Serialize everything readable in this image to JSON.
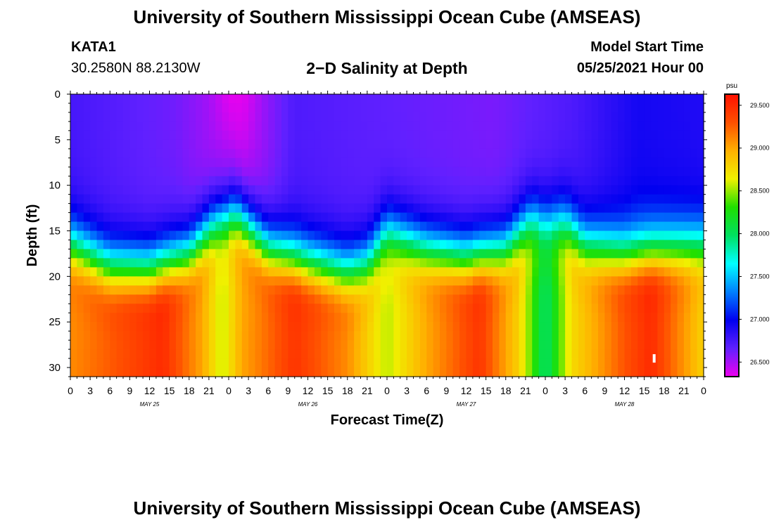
{
  "header": {
    "title": "University of Southern Mississippi Ocean Cube (AMSEAS)",
    "station_id": "KATA1",
    "station_coords": "30.2580N  88.2130W",
    "chart_title": "2−D Salinity at Depth",
    "model_start_label": "Model Start Time",
    "model_start_value": "05/25/2021 Hour 00"
  },
  "footer": {
    "title": "University of Southern Mississippi Ocean Cube (AMSEAS)"
  },
  "colors": {
    "background": "#ffffff",
    "axis": "#000000",
    "marker": "#ffffff"
  },
  "chart_data": {
    "type": "heatmap",
    "title": "2−D Salinity at Depth",
    "xlabel": "Forecast Time(Z)",
    "ylabel": "Depth (ft)",
    "x_range_hours": [
      0,
      96
    ],
    "y_range_ft": [
      0,
      31
    ],
    "x_tick_labels": [
      "0",
      "3",
      "6",
      "9",
      "12",
      "15",
      "18",
      "21",
      "0",
      "3",
      "6",
      "9",
      "12",
      "15",
      "18",
      "21",
      "0",
      "3",
      "6",
      "9",
      "12",
      "15",
      "18",
      "21",
      "0",
      "3",
      "6",
      "9",
      "12",
      "15",
      "18",
      "21",
      "0"
    ],
    "y_ticks": [
      0,
      5,
      10,
      15,
      20,
      25,
      30
    ],
    "day_labels": [
      {
        "label": "MAY 25",
        "hour": 12
      },
      {
        "label": "MAY 26",
        "hour": 36
      },
      {
        "label": "MAY 27",
        "hour": 60
      },
      {
        "label": "MAY 28",
        "hour": 84
      }
    ],
    "colorbar": {
      "unit": "psu",
      "range": [
        26.33,
        29.63
      ],
      "tick_values": [
        26.5,
        27.0,
        27.5,
        28.0,
        28.5,
        29.0,
        29.5
      ],
      "tick_labels": [
        "26.500",
        "27.000",
        "27.500",
        "28.000",
        "28.500",
        "29.000",
        "29.500"
      ],
      "stops": [
        "#ee00ee",
        "#6020ff",
        "#0000f0",
        "#0080ff",
        "#00ffff",
        "#00e060",
        "#20e000",
        "#f0f000",
        "#ffb000",
        "#ff5000",
        "#ff1000"
      ]
    },
    "halocline_depth_ft": [
      {
        "hour": 0,
        "depth": 14.0
      },
      {
        "hour": 6,
        "depth": 16.5
      },
      {
        "hour": 12,
        "depth": 16.8
      },
      {
        "hour": 18,
        "depth": 15.0
      },
      {
        "hour": 22,
        "depth": 11.5
      },
      {
        "hour": 25,
        "depth": 10.5
      },
      {
        "hour": 30,
        "depth": 14.5
      },
      {
        "hour": 36,
        "depth": 16.0
      },
      {
        "hour": 42,
        "depth": 17.0
      },
      {
        "hour": 45,
        "depth": 16.0
      },
      {
        "hour": 48,
        "depth": 12.5
      },
      {
        "hour": 54,
        "depth": 14.5
      },
      {
        "hour": 60,
        "depth": 15.5
      },
      {
        "hour": 66,
        "depth": 14.5
      },
      {
        "hour": 70,
        "depth": 11.0
      },
      {
        "hour": 75,
        "depth": 11.5
      },
      {
        "hour": 78,
        "depth": 14.0
      },
      {
        "hour": 84,
        "depth": 15.0
      },
      {
        "hour": 90,
        "depth": 14.5
      },
      {
        "hour": 96,
        "depth": 14.0
      }
    ],
    "surface_salinity_psu": [
      {
        "hour": 0,
        "value": 26.75
      },
      {
        "hour": 16,
        "value": 26.62
      },
      {
        "hour": 26,
        "value": 26.4
      },
      {
        "hour": 34,
        "value": 26.72
      },
      {
        "hour": 48,
        "value": 26.66
      },
      {
        "hour": 64,
        "value": 26.6
      },
      {
        "hour": 76,
        "value": 26.72
      },
      {
        "hour": 86,
        "value": 26.92
      },
      {
        "hour": 96,
        "value": 26.88
      }
    ],
    "bottom_salinity_psu": [
      {
        "hour": 0,
        "value": 29.1
      },
      {
        "hour": 14,
        "value": 29.5
      },
      {
        "hour": 20,
        "value": 29.0
      },
      {
        "hour": 23,
        "value": 28.55
      },
      {
        "hour": 26,
        "value": 29.0
      },
      {
        "hour": 34,
        "value": 29.45
      },
      {
        "hour": 42,
        "value": 29.1
      },
      {
        "hour": 48,
        "value": 28.55
      },
      {
        "hour": 54,
        "value": 29.0
      },
      {
        "hour": 62,
        "value": 29.45
      },
      {
        "hour": 68,
        "value": 28.8
      },
      {
        "hour": 72,
        "value": 27.95
      },
      {
        "hour": 76,
        "value": 28.75
      },
      {
        "hour": 84,
        "value": 29.3
      },
      {
        "hour": 88,
        "value": 29.5
      },
      {
        "hour": 96,
        "value": 28.8
      }
    ],
    "surface_minimum": {
      "hour": 25,
      "depth_end_ft": 6,
      "value": 26.35
    },
    "marker": {
      "hour": 88.5,
      "depth_ft": 29
    }
  }
}
